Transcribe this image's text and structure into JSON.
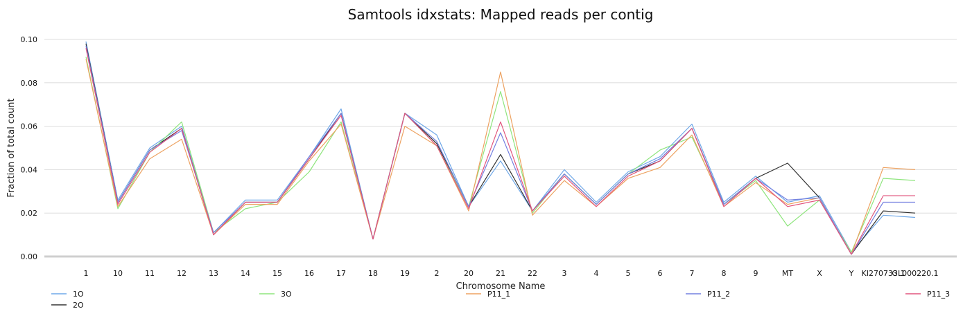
{
  "chart_data": {
    "type": "line",
    "title": "Samtools idxstats: Mapped reads per contig",
    "xlabel": "Chromosome Name",
    "ylabel": "Fraction of total count",
    "ylim": [
      0,
      0.1
    ],
    "yticks": [
      "0.00",
      "0.02",
      "0.04",
      "0.06",
      "0.08",
      "0.10"
    ],
    "grid": true,
    "legend_position": "bottom",
    "categories": [
      "1",
      "10",
      "11",
      "12",
      "13",
      "14",
      "15",
      "16",
      "17",
      "18",
      "19",
      "2",
      "20",
      "21",
      "22",
      "3",
      "4",
      "5",
      "6",
      "7",
      "8",
      "9",
      "MT",
      "X",
      "Y",
      "KI270733.1",
      "GL000220.1"
    ],
    "series": [
      {
        "name": "1O",
        "color": "#6fa8e8",
        "values": [
          0.099,
          0.026,
          0.05,
          0.06,
          0.011,
          0.026,
          0.026,
          0.046,
          0.068,
          0.008,
          0.066,
          0.056,
          0.023,
          0.044,
          0.021,
          0.04,
          0.025,
          0.039,
          0.046,
          0.061,
          0.025,
          0.037,
          0.025,
          0.028,
          0.002,
          0.019,
          0.018
        ]
      },
      {
        "name": "2O",
        "color": "#333333",
        "values": [
          0.098,
          0.025,
          0.049,
          0.059,
          0.01,
          0.025,
          0.025,
          0.045,
          0.066,
          0.008,
          0.066,
          0.052,
          0.023,
          0.047,
          0.021,
          0.038,
          0.024,
          0.038,
          0.044,
          0.059,
          0.024,
          0.036,
          0.043,
          0.027,
          0.001,
          0.021,
          0.02
        ]
      },
      {
        "name": "3O",
        "color": "#8ee57d",
        "values": [
          0.092,
          0.022,
          0.048,
          0.062,
          0.011,
          0.022,
          0.025,
          0.039,
          0.062,
          0.008,
          0.066,
          0.051,
          0.023,
          0.076,
          0.02,
          0.038,
          0.024,
          0.038,
          0.049,
          0.055,
          0.024,
          0.035,
          0.014,
          0.026,
          0.002,
          0.036,
          0.035
        ]
      },
      {
        "name": "P11_1",
        "color": "#eda261",
        "values": [
          0.091,
          0.023,
          0.045,
          0.054,
          0.01,
          0.024,
          0.024,
          0.044,
          0.061,
          0.008,
          0.06,
          0.051,
          0.021,
          0.085,
          0.019,
          0.035,
          0.023,
          0.036,
          0.041,
          0.056,
          0.023,
          0.034,
          0.024,
          0.027,
          0.001,
          0.041,
          0.04
        ]
      },
      {
        "name": "P11_2",
        "color": "#7480e0",
        "values": [
          0.097,
          0.025,
          0.049,
          0.058,
          0.011,
          0.025,
          0.025,
          0.046,
          0.066,
          0.008,
          0.066,
          0.053,
          0.023,
          0.057,
          0.021,
          0.038,
          0.024,
          0.038,
          0.045,
          0.059,
          0.024,
          0.036,
          0.026,
          0.027,
          0.001,
          0.025,
          0.025
        ]
      },
      {
        "name": "P11_3",
        "color": "#e2557e",
        "values": [
          0.096,
          0.024,
          0.048,
          0.059,
          0.01,
          0.025,
          0.025,
          0.045,
          0.065,
          0.008,
          0.066,
          0.051,
          0.022,
          0.062,
          0.021,
          0.037,
          0.023,
          0.037,
          0.044,
          0.059,
          0.023,
          0.036,
          0.023,
          0.026,
          0.001,
          0.028,
          0.028
        ]
      }
    ]
  }
}
